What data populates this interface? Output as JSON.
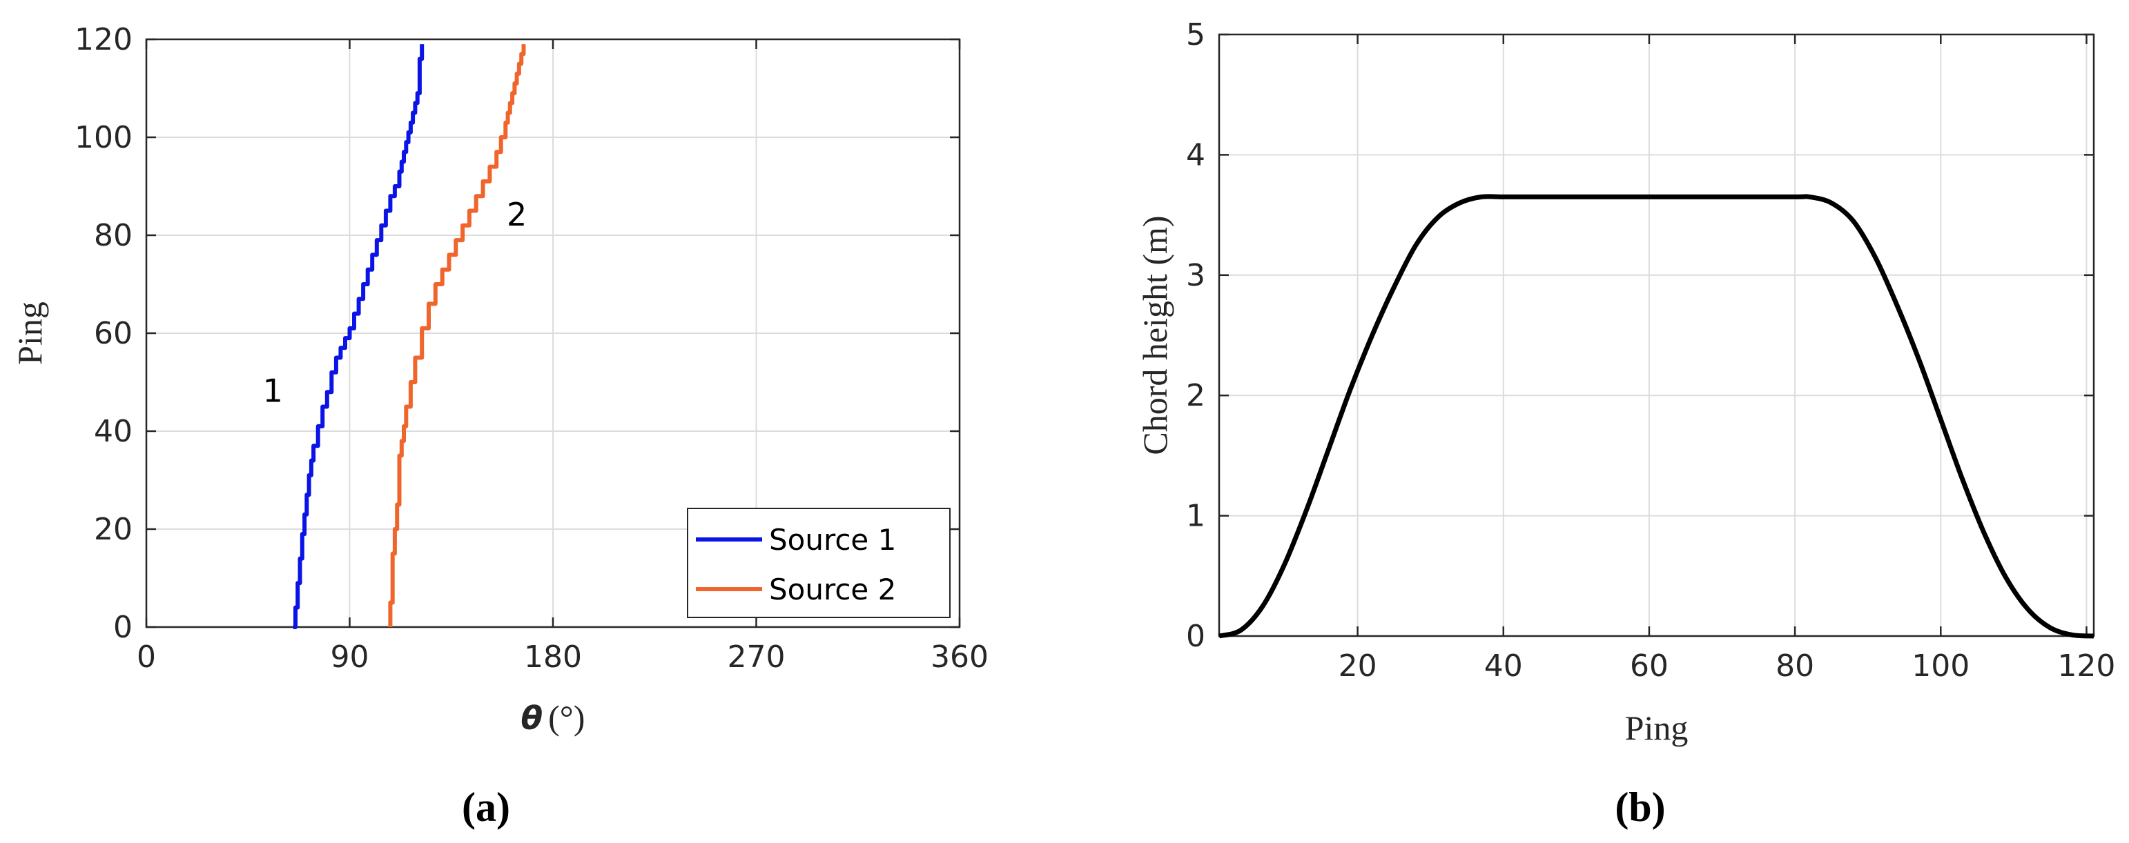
{
  "chart_data": [
    {
      "panel": "(a)",
      "type": "line",
      "xlabel_symbol": "θ",
      "xlabel_unit": "(°)",
      "ylabel": "Ping",
      "xlim": [
        0,
        360
      ],
      "ylim": [
        0,
        120
      ],
      "xticks": [
        0,
        90,
        180,
        270,
        360
      ],
      "yticks": [
        0,
        20,
        40,
        60,
        80,
        100,
        120
      ],
      "grid": true,
      "legend_position": "bottom-right",
      "series": [
        {
          "name": "Source 1",
          "color": "#0a14e6",
          "annotation": "1",
          "x": [
            65,
            66,
            67,
            68,
            69,
            70,
            71,
            72,
            73,
            74,
            76,
            78,
            80,
            82,
            84,
            86,
            88,
            90,
            92,
            94,
            96,
            98,
            100,
            102,
            104,
            106,
            108,
            110,
            112,
            113,
            114,
            115,
            116,
            117,
            118,
            119,
            120,
            121,
            121,
            121,
            121,
            122,
            122
          ],
          "y": [
            0,
            4,
            9,
            14,
            19,
            23,
            27,
            31,
            34,
            37,
            41,
            45,
            48,
            52,
            55,
            57,
            59,
            61,
            64,
            67,
            70,
            73,
            76,
            79,
            82,
            85,
            88,
            90,
            93,
            95,
            97,
            99,
            101,
            103,
            105,
            107,
            109,
            111,
            112,
            114,
            116,
            118,
            119
          ]
        },
        {
          "name": "Source 2",
          "color": "#f0652c",
          "annotation": "2",
          "x": [
            108,
            108,
            109,
            109,
            110,
            111,
            112,
            112,
            113,
            114,
            115,
            117,
            119,
            122,
            125,
            128,
            131,
            134,
            137,
            140,
            143,
            146,
            149,
            152,
            155,
            157,
            159,
            160,
            161,
            162,
            163,
            164,
            165,
            166,
            167
          ],
          "y": [
            0,
            5,
            10,
            15,
            20,
            25,
            30,
            35,
            38,
            41,
            45,
            50,
            55,
            61,
            66,
            70,
            73,
            76,
            79,
            82,
            85,
            88,
            91,
            94,
            97,
            100,
            103,
            105,
            107,
            109,
            111,
            113,
            115,
            117,
            119
          ]
        }
      ]
    },
    {
      "panel": "(b)",
      "type": "line",
      "xlabel": "Ping",
      "ylabel": "Chord height (m)",
      "xlim": [
        1,
        121
      ],
      "ylim": [
        0,
        5
      ],
      "xticks": [
        20,
        40,
        60,
        80,
        100,
        120
      ],
      "yticks": [
        0,
        1,
        2,
        3,
        4,
        5
      ],
      "grid": true,
      "series": [
        {
          "color": "#000000",
          "x": [
            1,
            4,
            7,
            10,
            13,
            16,
            19,
            22,
            25,
            28,
            31,
            34,
            37,
            40,
            43,
            50,
            60,
            70,
            80,
            82,
            85,
            88,
            91,
            94,
            97,
            100,
            103,
            106,
            109,
            112,
            115,
            118,
            121
          ],
          "y": [
            0,
            0.05,
            0.25,
            0.6,
            1.05,
            1.55,
            2.05,
            2.5,
            2.9,
            3.25,
            3.48,
            3.6,
            3.65,
            3.65,
            3.65,
            3.65,
            3.65,
            3.65,
            3.65,
            3.65,
            3.6,
            3.45,
            3.15,
            2.75,
            2.3,
            1.8,
            1.3,
            0.85,
            0.48,
            0.22,
            0.07,
            0.01,
            0
          ]
        }
      ]
    }
  ]
}
